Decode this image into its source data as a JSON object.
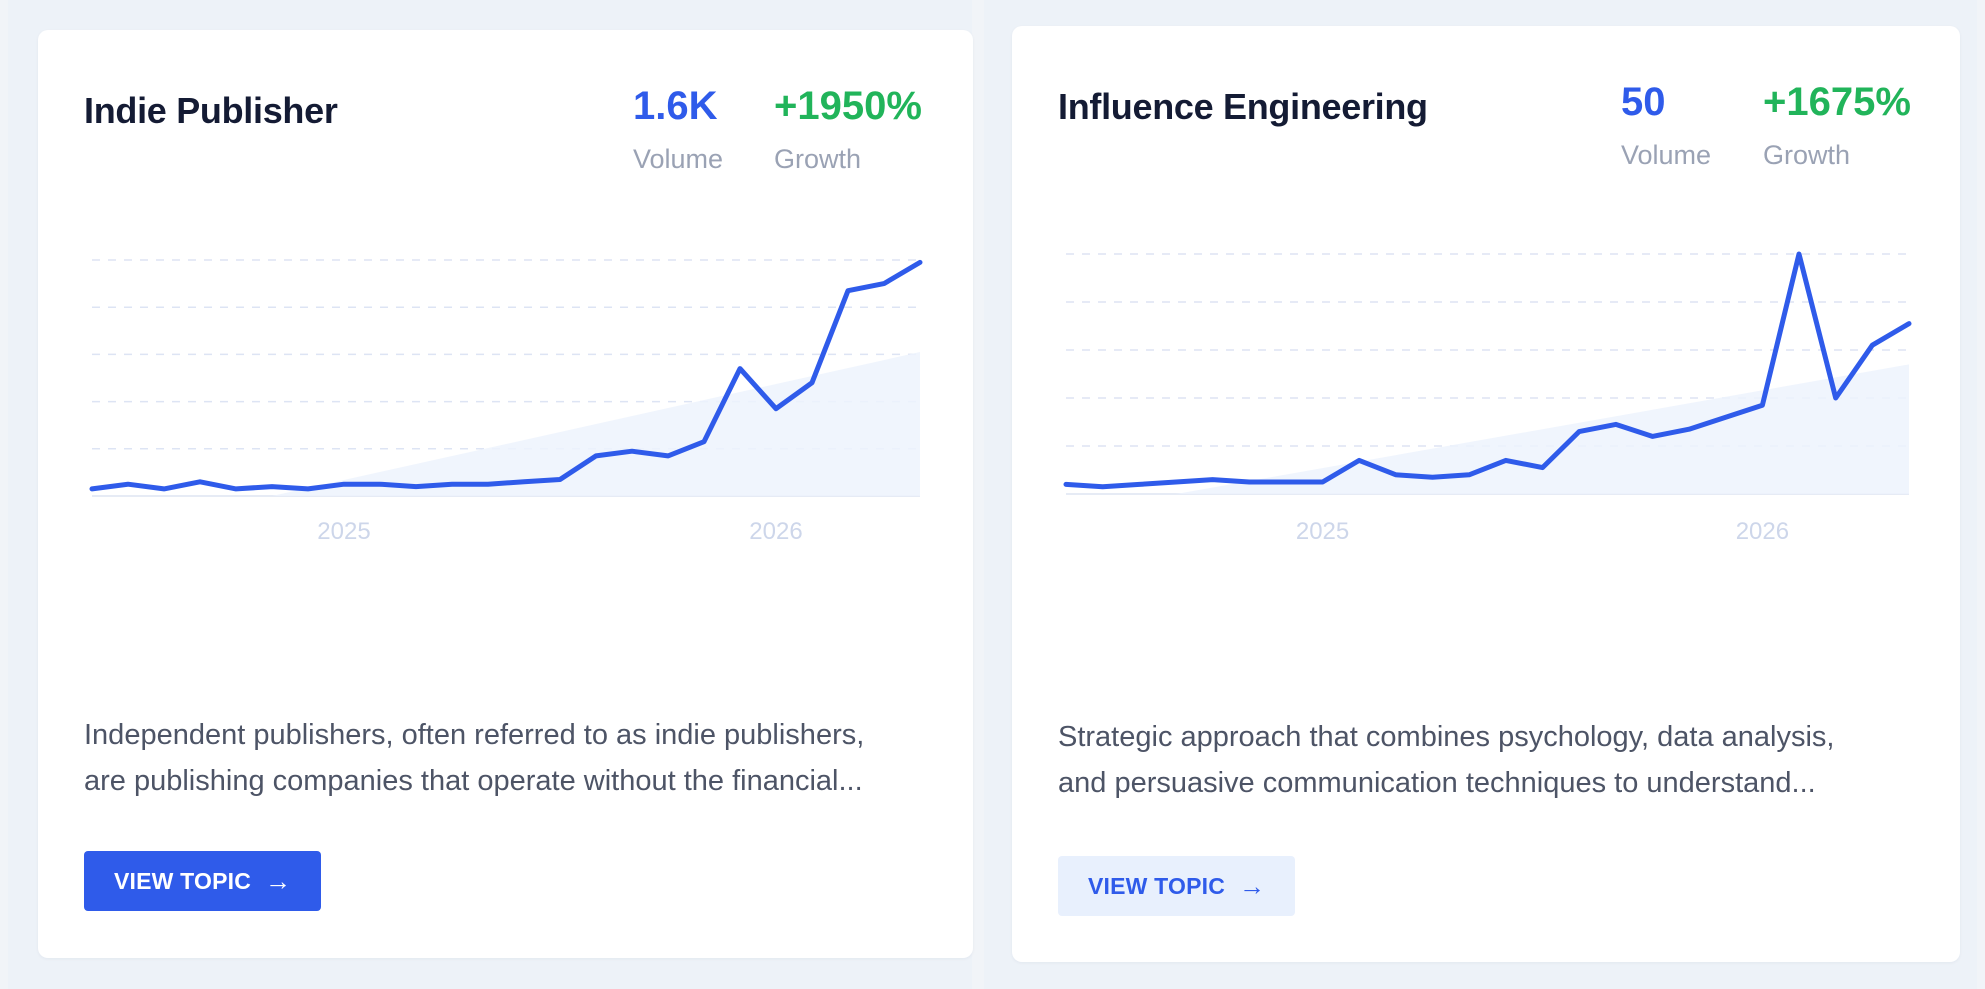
{
  "colors": {
    "volume": "#2f5bea",
    "growth": "#21b45a",
    "line": "#2f5bea",
    "button_primary": "#2f5bea",
    "button_secondary": "#e8f0fd"
  },
  "cards": [
    {
      "title": "Indie Publisher",
      "volume": "1.6K",
      "volume_label": "Volume",
      "growth": "+1950%",
      "growth_label": "Growth",
      "description_lines": [
        "Independent publishers, often referred to as indie publishers,",
        "are publishing companies that operate without the financial..."
      ],
      "button_label": "VIEW TOPIC",
      "button_icon": "arrow-right-icon"
    },
    {
      "title": "Influence Engineering",
      "volume": "50",
      "volume_label": "Volume",
      "growth": "+1675%",
      "growth_label": "Growth",
      "description_lines": [
        "Strategic approach that combines psychology, data analysis,",
        "and persuasive communication techniques to understand..."
      ],
      "button_label": "VIEW TOPIC",
      "button_icon": "arrow-right-icon"
    }
  ],
  "chart_data": [
    {
      "type": "line",
      "title": "",
      "x_tick_labels": [
        "2025",
        "2026"
      ],
      "x_tick_positions": [
        7,
        19
      ],
      "ylim": [
        0,
        100
      ],
      "grid": true,
      "series": [
        {
          "values": [
            3,
            5,
            3,
            6,
            3,
            4,
            3,
            5,
            5,
            4,
            5,
            5,
            6,
            7,
            17,
            19,
            17,
            23,
            54,
            37,
            48,
            87,
            90,
            99
          ]
        }
      ],
      "trend": {
        "start_index": 5,
        "start_value": 0,
        "end_index": 23,
        "end_value": 61
      }
    },
    {
      "type": "line",
      "title": "",
      "x_tick_labels": [
        "2025",
        "2026"
      ],
      "x_tick_positions": [
        7,
        19
      ],
      "ylim": [
        0,
        100
      ],
      "grid": true,
      "series": [
        {
          "values": [
            4,
            3,
            4,
            5,
            6,
            5,
            5,
            5,
            14,
            8,
            7,
            8,
            14,
            11,
            26,
            29,
            24,
            27,
            32,
            37,
            100,
            40,
            62,
            71
          ]
        }
      ],
      "trend": {
        "start_index": 3,
        "start_value": 0,
        "end_index": 23,
        "end_value": 54
      }
    }
  ]
}
